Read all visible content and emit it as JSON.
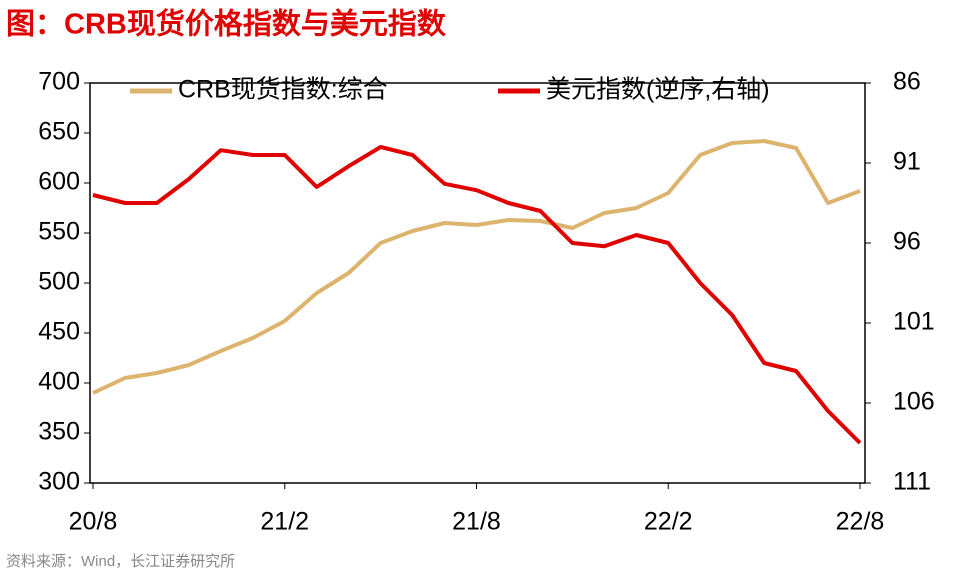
{
  "chart_data": {
    "type": "line",
    "title": "图：CRB现货价格指数与美元指数",
    "source": "资料来源：Wind，长江证券研究所",
    "x": [
      "20/8",
      "20/9",
      "20/10",
      "20/11",
      "20/12",
      "21/1",
      "21/2",
      "21/3",
      "21/4",
      "21/5",
      "21/6",
      "21/7",
      "21/8",
      "21/9",
      "21/10",
      "21/11",
      "21/12",
      "22/1",
      "22/2",
      "22/3",
      "22/4",
      "22/5",
      "22/6",
      "22/7",
      "22/8"
    ],
    "xticks": [
      "20/8",
      "21/2",
      "21/8",
      "22/2",
      "22/8"
    ],
    "series": [
      {
        "name": "CRB现货指数:综合",
        "color": "#dcb46e",
        "axis": "y",
        "values": [
          390,
          405,
          410,
          418,
          432,
          445,
          462,
          490,
          510,
          540,
          552,
          560,
          558,
          563,
          562,
          555,
          570,
          575,
          590,
          628,
          640,
          642,
          635,
          580,
          592
        ]
      },
      {
        "name": "美元指数(逆序,右轴)",
        "color": "#e00000",
        "axis": "y2",
        "values": [
          93,
          93.5,
          93.5,
          92,
          90.2,
          90.5,
          90.5,
          92.5,
          91.2,
          90,
          90.5,
          92.3,
          92.7,
          93.5,
          94,
          96,
          96.2,
          95.5,
          96,
          98.5,
          100.5,
          103.5,
          104,
          106.5,
          108.5
        ]
      }
    ],
    "ylim": [
      300,
      700
    ],
    "yticks": [
      300,
      350,
      400,
      450,
      500,
      550,
      600,
      650,
      700
    ],
    "y2lim": [
      111,
      86
    ],
    "y2ticks": [
      111,
      106,
      101,
      96,
      91,
      86
    ],
    "legend": "top"
  }
}
